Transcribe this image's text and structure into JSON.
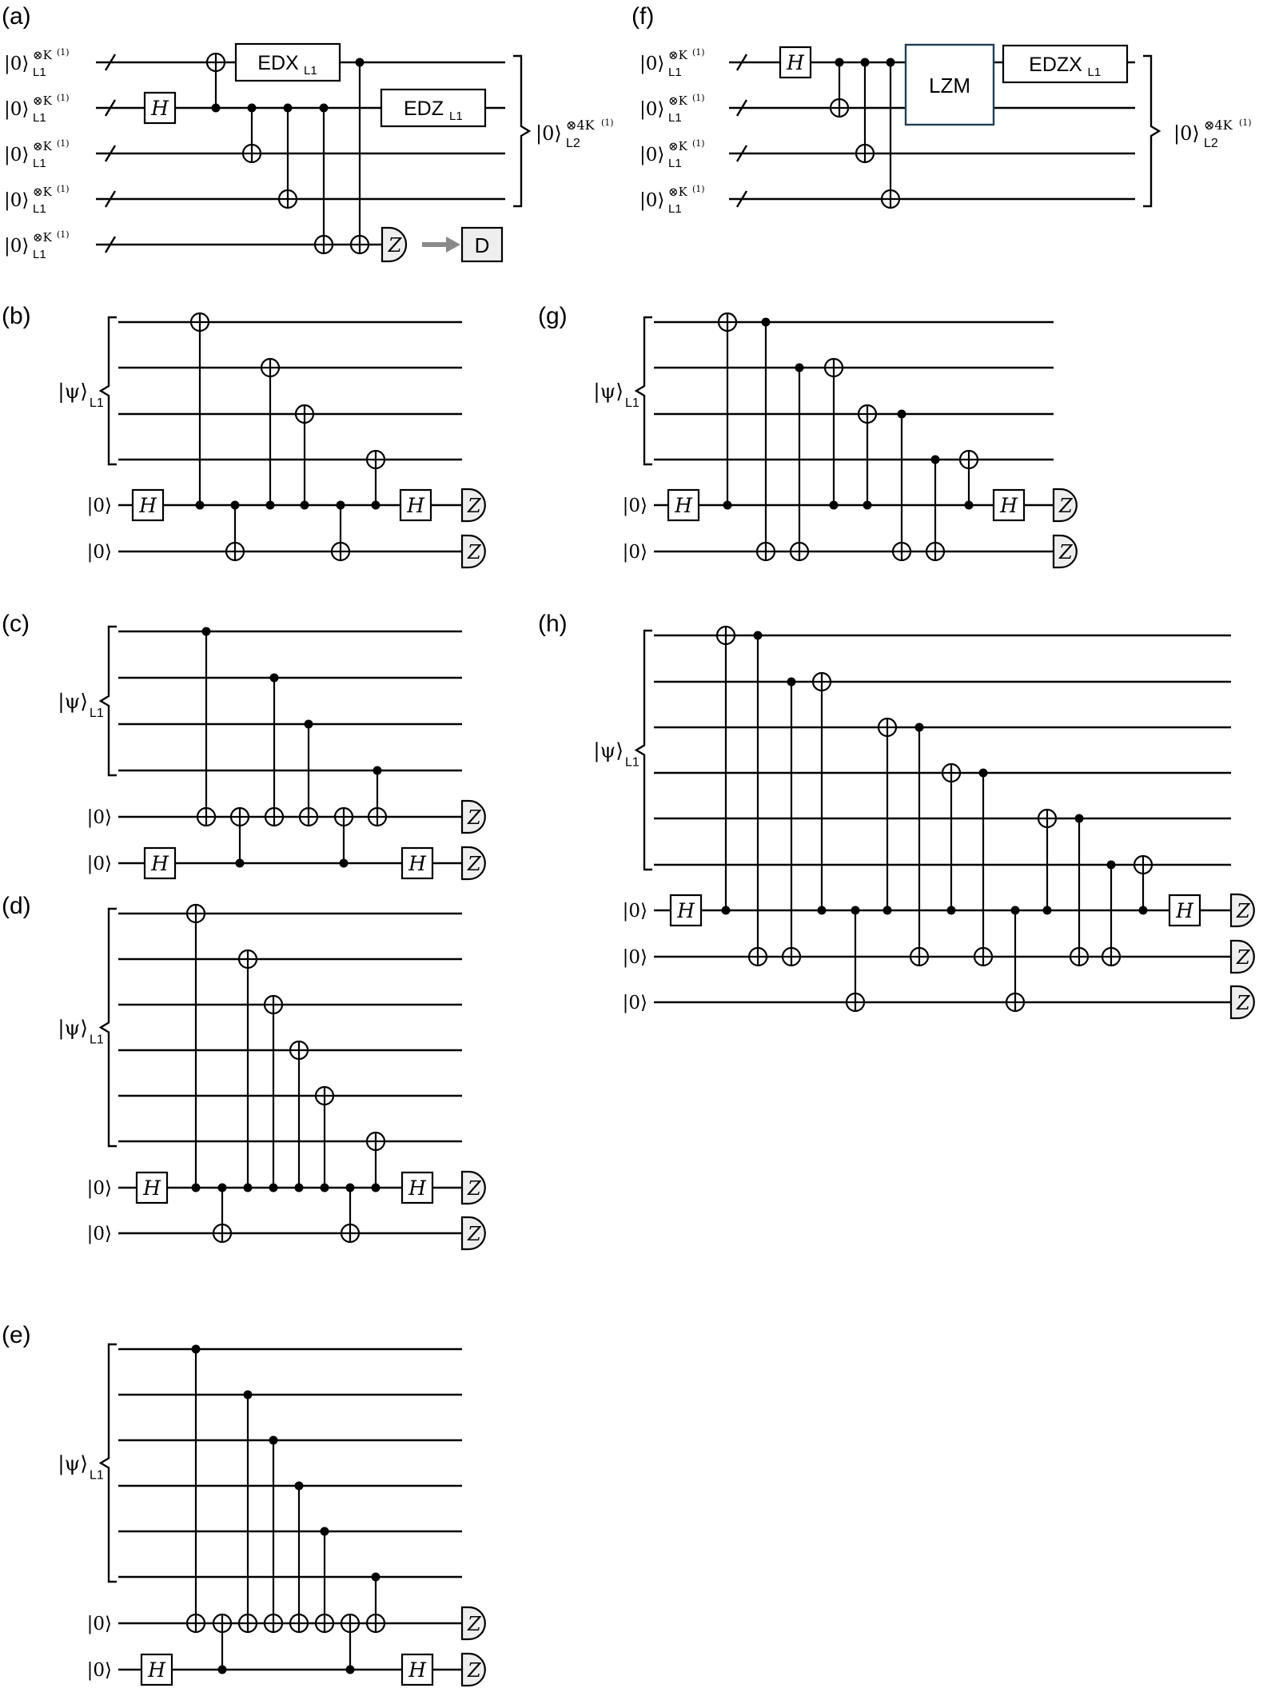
{
  "panels": {
    "a": "(a)",
    "b": "(b)",
    "c": "(c)",
    "d": "(d)",
    "e": "(e)",
    "f": "(f)",
    "g": "(g)",
    "h": "(h)"
  },
  "labels": {
    "ket0": "|0⟩",
    "psi_ket": "|ψ⟩",
    "psi_sub": "L1",
    "l1_sup": "⊗K",
    "l1_sup_idx": "(1)",
    "l1_sub": "L1",
    "l2_ket": "|0⟩",
    "l2_sup": "⊗4K",
    "l2_sup_idx": "(1)",
    "l2_sub": "L2"
  },
  "gates": {
    "hadamard": "H",
    "measure": "Z",
    "decoder": "D",
    "lzm": "LZM",
    "edx_main": "EDX",
    "edx_sub": "L1",
    "edz_main": "EDZ",
    "edz_sub": "L1",
    "edzx_main": "EDZX",
    "edzx_sub": "L1"
  }
}
